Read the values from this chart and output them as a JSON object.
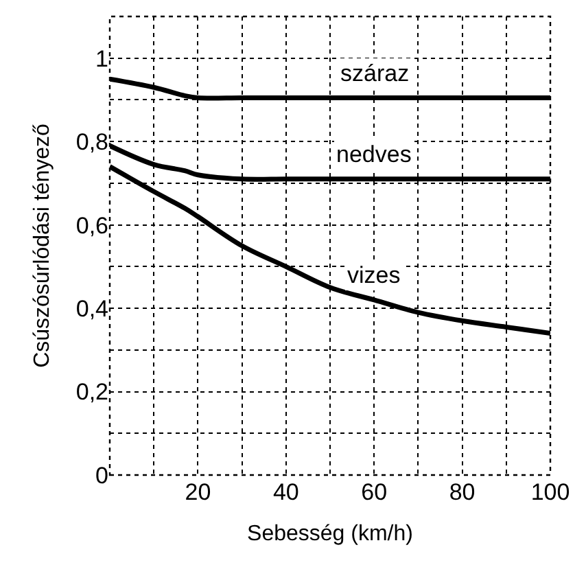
{
  "chart_data": {
    "type": "line",
    "xlabel": "Sebesség (km/h)",
    "ylabel": "Csúszósúrlódási tényező",
    "x": [
      0,
      10,
      17,
      20,
      30,
      40,
      50,
      60,
      70,
      80,
      90,
      100
    ],
    "series": [
      {
        "name": "száraz",
        "color": "#000000",
        "values": [
          0.95,
          0.93,
          0.91,
          0.905,
          0.905,
          0.905,
          0.905,
          0.905,
          0.905,
          0.905,
          0.905,
          0.905
        ]
      },
      {
        "name": "nedves",
        "color": "#000000",
        "values": [
          0.79,
          0.745,
          0.73,
          0.72,
          0.71,
          0.71,
          0.71,
          0.71,
          0.71,
          0.71,
          0.71,
          0.71
        ]
      },
      {
        "name": "vizes",
        "color": "#000000",
        "values": [
          0.74,
          0.68,
          0.64,
          0.62,
          0.55,
          0.5,
          0.45,
          0.42,
          0.39,
          0.37,
          0.355,
          0.34
        ]
      }
    ],
    "xlim": [
      0,
      100
    ],
    "xticks": [
      {
        "value": 10,
        "label": null
      },
      20,
      {
        "value": 30,
        "label": null
      },
      40,
      {
        "value": 50,
        "label": null
      },
      60,
      {
        "value": 70,
        "label": null
      },
      80,
      {
        "value": 90,
        "label": null
      },
      100
    ],
    "ylim": [
      0,
      1.1
    ],
    "yticks": [
      {
        "value": 0,
        "label": "0"
      },
      {
        "value": 0.1,
        "label": null
      },
      {
        "value": 0.2,
        "label": "0,2"
      },
      {
        "value": 0.3,
        "label": null
      },
      {
        "value": 0.4,
        "label": "0,4"
      },
      {
        "value": 0.5,
        "label": null
      },
      {
        "value": 0.6,
        "label": "0,6"
      },
      {
        "value": 0.7,
        "label": null
      },
      {
        "value": 0.8,
        "label": "0,8"
      },
      {
        "value": 0.9,
        "label": null
      },
      {
        "value": 1,
        "label": "1"
      }
    ],
    "grid": true,
    "legend": false,
    "marker": "none",
    "line_style": "solid"
  }
}
